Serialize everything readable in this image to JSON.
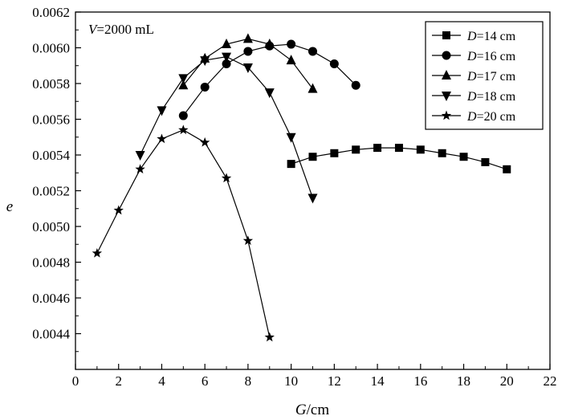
{
  "chart_data": {
    "type": "line",
    "title": "",
    "annotation": {
      "var": "V",
      "rest": "=2000 mL"
    },
    "xlabel": {
      "var": "G",
      "rest": "/cm"
    },
    "ylabel": {
      "var": "e",
      "rest": ""
    },
    "xlim": [
      0,
      22
    ],
    "ylim": [
      0.0042,
      0.0062
    ],
    "xticks": [
      "0",
      "2",
      "4",
      "6",
      "8",
      "10",
      "12",
      "14",
      "16",
      "18",
      "20",
      "22"
    ],
    "yticks": [
      "0.0044",
      "0.0046",
      "0.0048",
      "0.0050",
      "0.0052",
      "0.0054",
      "0.0056",
      "0.0058",
      "0.0060",
      "0.0062"
    ],
    "grid": false,
    "legend_position": "top-right",
    "series": [
      {
        "name": "D=14 cm",
        "name_var": "D",
        "name_rest": "=14 cm",
        "marker": "square",
        "x": [
          10,
          11,
          12,
          13,
          14,
          15,
          16,
          17,
          18,
          19,
          20
        ],
        "y": [
          0.00535,
          0.00539,
          0.00541,
          0.00543,
          0.00544,
          0.00544,
          0.00543,
          0.00541,
          0.00539,
          0.00536,
          0.00532
        ]
      },
      {
        "name": "D=16 cm",
        "name_var": "D",
        "name_rest": "=16 cm",
        "marker": "circle",
        "x": [
          5,
          6,
          7,
          8,
          9,
          10,
          11,
          12,
          13
        ],
        "y": [
          0.00562,
          0.00578,
          0.00591,
          0.00598,
          0.00601,
          0.00602,
          0.00598,
          0.00591,
          0.00579
        ]
      },
      {
        "name": "D=17 cm",
        "name_var": "D",
        "name_rest": "=17 cm",
        "marker": "triangle-up",
        "x": [
          5,
          6,
          7,
          8,
          9,
          10,
          11
        ],
        "y": [
          0.00579,
          0.00594,
          0.00602,
          0.00605,
          0.00602,
          0.00593,
          0.00577
        ]
      },
      {
        "name": "D=18 cm",
        "name_var": "D",
        "name_rest": "=18 cm",
        "marker": "triangle-down",
        "x": [
          3,
          4,
          5,
          6,
          7,
          8,
          9,
          10,
          11
        ],
        "y": [
          0.0054,
          0.00565,
          0.00583,
          0.00593,
          0.00595,
          0.00589,
          0.00575,
          0.0055,
          0.00516
        ]
      },
      {
        "name": "D=20 cm",
        "name_var": "D",
        "name_rest": "=20 cm",
        "marker": "star",
        "x": [
          1,
          2,
          3,
          4,
          5,
          6,
          7,
          8,
          9
        ],
        "y": [
          0.00485,
          0.00509,
          0.00532,
          0.00549,
          0.00554,
          0.00547,
          0.00527,
          0.00492,
          0.00438
        ]
      }
    ]
  }
}
